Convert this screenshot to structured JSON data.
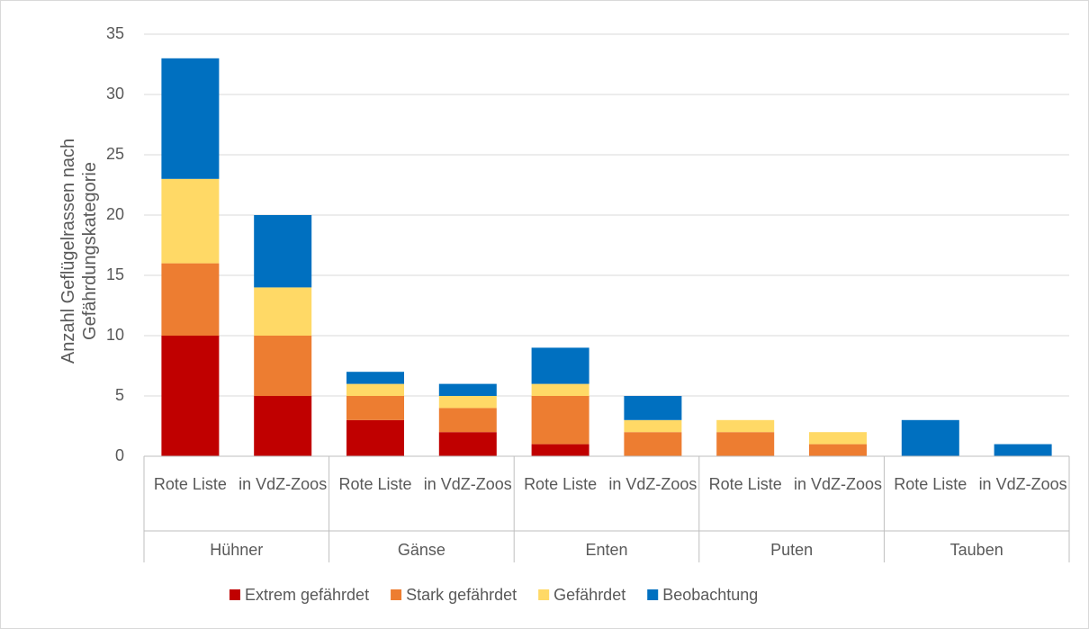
{
  "chart_data": {
    "type": "bar",
    "stacked": true,
    "y_label": "Anzahl Geflügelrassen nach Gefährdungskategorie",
    "categories": [
      "Rote Liste",
      "in VdZ-Zoos",
      "Rote Liste",
      "in VdZ-Zoos",
      "Rote Liste",
      "in VdZ-Zoos",
      "Rote Liste",
      "in VdZ-Zoos",
      "Rote Liste",
      "in VdZ-Zoos"
    ],
    "groups": [
      "Hühner",
      "Gänse",
      "Enten",
      "Puten",
      "Tauben"
    ],
    "series": [
      {
        "name": "Extrem gefährdet",
        "color": "#c00000",
        "values": [
          10,
          5,
          3,
          2,
          1,
          0,
          0,
          0,
          0,
          0
        ]
      },
      {
        "name": "Stark gefährdet",
        "color": "#ed7d31",
        "values": [
          6,
          5,
          2,
          2,
          4,
          2,
          2,
          1,
          0,
          0
        ]
      },
      {
        "name": "Gefährdet",
        "color": "#ffd966",
        "values": [
          7,
          4,
          1,
          1,
          1,
          1,
          1,
          1,
          0,
          0
        ]
      },
      {
        "name": "Beobachtung",
        "color": "#0070c0",
        "values": [
          10,
          6,
          1,
          1,
          3,
          2,
          0,
          0,
          3,
          1
        ]
      }
    ],
    "ylim": [
      0,
      35
    ],
    "yticks": [
      0,
      5,
      10,
      15,
      20,
      25,
      30,
      35
    ],
    "grid": true,
    "legend": "bottom"
  }
}
